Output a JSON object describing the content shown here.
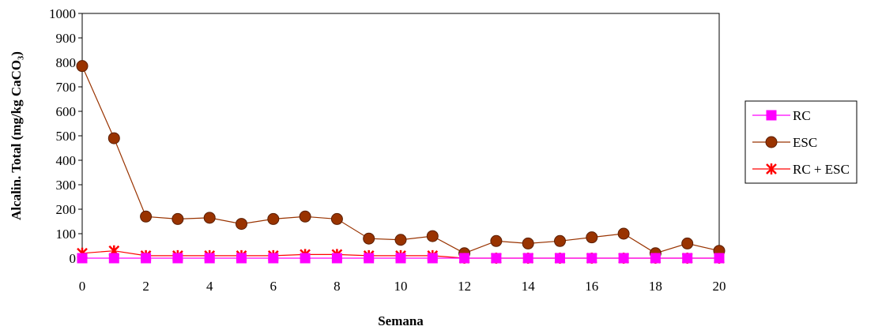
{
  "chart_data": {
    "type": "line",
    "title": "",
    "xlabel": "Semana",
    "ylabel": "Alcalin. Total (mg/kg CaCO₃)",
    "xlim": [
      0,
      20
    ],
    "ylim": [
      0,
      1000
    ],
    "x_ticks": [
      "0",
      "2",
      "4",
      "6",
      "8",
      "10",
      "12",
      "14",
      "16",
      "18",
      "20"
    ],
    "y_ticks": [
      "0",
      "100",
      "200",
      "300",
      "400",
      "500",
      "600",
      "700",
      "800",
      "900",
      "1000"
    ],
    "grid": false,
    "legend_position": "right",
    "x": [
      0,
      1,
      2,
      3,
      4,
      5,
      6,
      7,
      8,
      9,
      10,
      11,
      12,
      13,
      14,
      15,
      16,
      17,
      18,
      19,
      20
    ],
    "series": [
      {
        "name": "RC",
        "color": "#ff00ff",
        "line_color": "#ff00ff",
        "marker": "square",
        "values": [
          0,
          0,
          0,
          0,
          0,
          0,
          0,
          0,
          0,
          0,
          0,
          0,
          0,
          0,
          0,
          0,
          0,
          0,
          0,
          0,
          0
        ]
      },
      {
        "name": "ESC",
        "color": "#993300",
        "line_color": "#993300",
        "marker": "circle",
        "values": [
          785,
          490,
          170,
          160,
          165,
          140,
          160,
          170,
          160,
          80,
          75,
          90,
          20,
          70,
          60,
          70,
          85,
          100,
          20,
          60,
          30
        ]
      },
      {
        "name": "RC + ESC",
        "color": "#ff0000",
        "line_color": "#ff0000",
        "marker": "star",
        "values": [
          20,
          30,
          10,
          10,
          10,
          10,
          10,
          15,
          15,
          10,
          10,
          10,
          0,
          0,
          0,
          0,
          0,
          0,
          0,
          0,
          0
        ]
      }
    ]
  }
}
